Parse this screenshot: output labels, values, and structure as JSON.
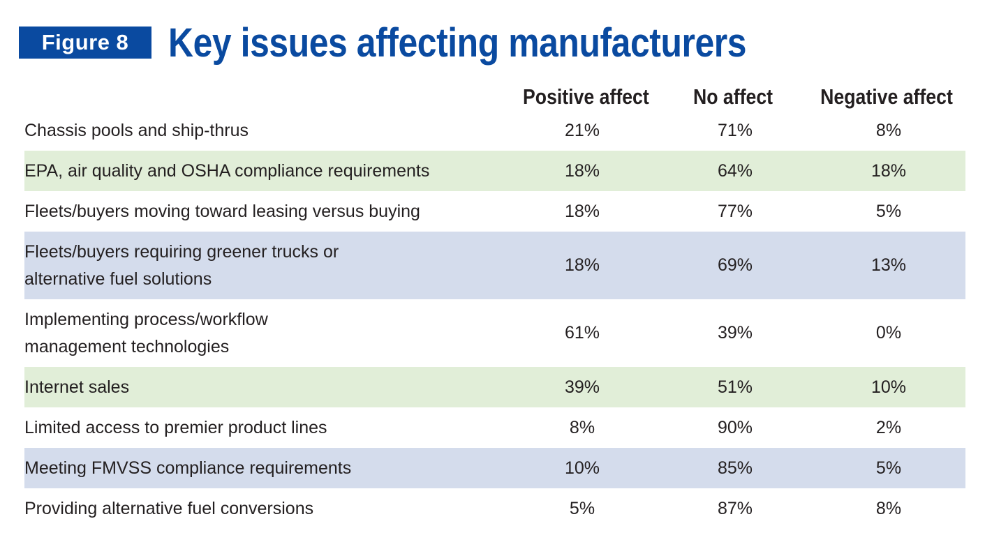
{
  "figure_label": "Figure 8",
  "title": "Key issues affecting manufacturers",
  "chart_data": {
    "type": "table",
    "title": "Key issues affecting manufacturers",
    "columns": [
      "Positive affect",
      "No affect",
      "Negative affect"
    ],
    "rows": [
      {
        "label": "Chassis pools and ship-thrus",
        "values": [
          "21%",
          "71%",
          "8%"
        ]
      },
      {
        "label": "EPA, air quality and OSHA compliance requirements",
        "values": [
          "18%",
          "64%",
          "18%"
        ]
      },
      {
        "label": "Fleets/buyers moving toward leasing versus buying",
        "values": [
          "18%",
          "77%",
          "5%"
        ]
      },
      {
        "label_lines": [
          "Fleets/buyers requiring greener trucks or",
          "alternative fuel solutions"
        ],
        "values": [
          "18%",
          "69%",
          "13%"
        ]
      },
      {
        "label_lines": [
          "Implementing process/workflow",
          "management technologies"
        ],
        "values": [
          "61%",
          "39%",
          "0%"
        ]
      },
      {
        "label": "Internet sales",
        "values": [
          "39%",
          "51%",
          "10%"
        ]
      },
      {
        "label": "Limited access to premier product lines",
        "values": [
          "8%",
          "90%",
          "2%"
        ]
      },
      {
        "label": "Meeting FMVSS compliance requirements",
        "values": [
          "10%",
          "85%",
          "5%"
        ]
      },
      {
        "label": "Providing alternative fuel conversions",
        "values": [
          "5%",
          "87%",
          "8%"
        ]
      }
    ]
  },
  "colors": {
    "brand_blue": "#0a4aa0",
    "row_green": "#e1eed8",
    "row_blue": "#d4dcec",
    "text": "#231f20"
  }
}
